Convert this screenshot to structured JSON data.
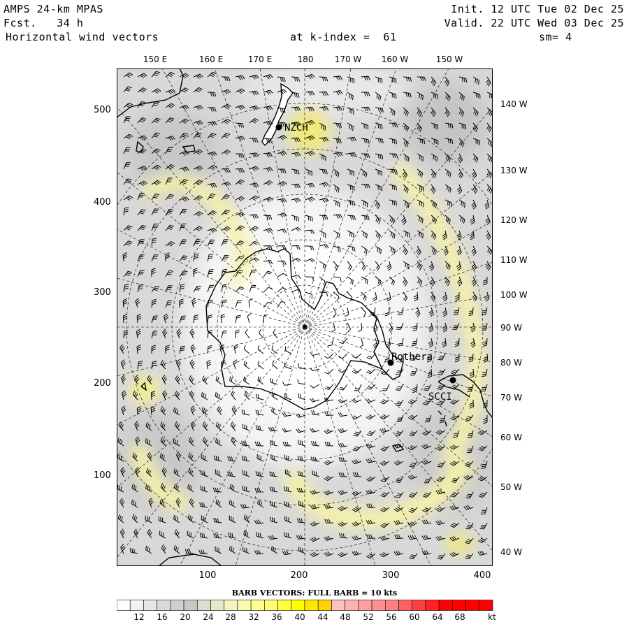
{
  "header": {
    "model": "AMPS 24-km MPAS",
    "fcst": "Fcst.   34 h",
    "field": "Horizontal wind vectors",
    "init": "Init. 12 UTC Tue 02 Dec 25",
    "valid": "Valid. 22 UTC Wed 03 Dec 25",
    "kindex": "at k-index =  61",
    "smooth": "sm= 4"
  },
  "top_lon_labels": [
    "150 E",
    "160 E",
    "170 E",
    "180",
    "170 W",
    "160 W",
    "150 W"
  ],
  "right_lon_labels": [
    "140 W",
    "130 W",
    "120 W",
    "110 W",
    "100 W",
    "90 W",
    "80 W",
    "70 W",
    "60 W",
    "50 W",
    "40 W"
  ],
  "y_ticks": [
    "500",
    "400",
    "300",
    "200",
    "100"
  ],
  "x_ticks": [
    "100",
    "200",
    "300",
    "400"
  ],
  "stations": [
    {
      "id": "NZCH",
      "label": "NZCH"
    },
    {
      "id": "Rothera",
      "label": "Rothera"
    },
    {
      "id": "SCCI",
      "label": "SCCI"
    }
  ],
  "legend": {
    "title": "BARB VECTORS:  FULL BARB = 10 kts",
    "unit": "kt",
    "labels": [
      "12",
      "16",
      "20",
      "24",
      "28",
      "32",
      "36",
      "40",
      "44",
      "48",
      "52",
      "56",
      "60",
      "64",
      "68"
    ],
    "colors": [
      "#ffffff",
      "#f2f2f2",
      "#e6e6e6",
      "#dadada",
      "#d0d0d0",
      "#c8c8c8",
      "#dcdcd0",
      "#e8e8c8",
      "#f4f4c0",
      "#fafab0",
      "#ffff96",
      "#ffff70",
      "#ffff40",
      "#ffff00",
      "#ffe800",
      "#ffd200",
      "#ffc0c0",
      "#ffb0b0",
      "#ffa0a0",
      "#ff9090",
      "#ff8080",
      "#ff6060",
      "#ff4040",
      "#ff2020",
      "#ff0000",
      "#ff0000",
      "#ff0000",
      "#ff0000"
    ]
  }
}
